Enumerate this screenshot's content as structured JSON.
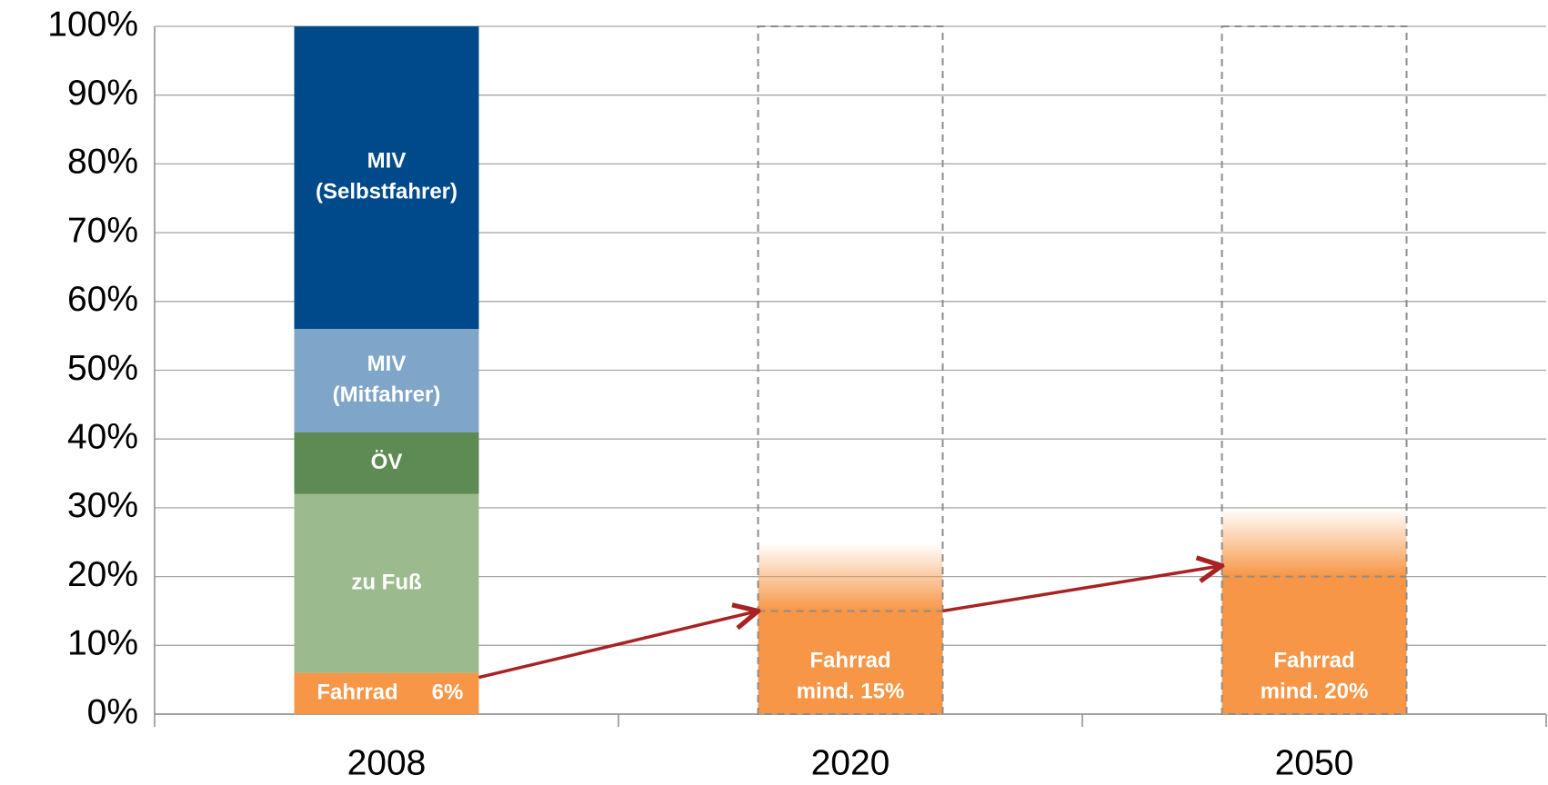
{
  "chart_data": {
    "type": "stacked_bar",
    "categories": [
      "2008",
      "2020",
      "2050"
    ],
    "series": [
      {
        "name": "Fahrrad",
        "color": "#f79646",
        "values": [
          6,
          15,
          20
        ],
        "value_labels": [
          "6%",
          "mind. 15%",
          "mind. 20%"
        ]
      },
      {
        "name": "zu Fuß",
        "color": "#9bbb8e",
        "values": [
          26,
          null,
          null
        ]
      },
      {
        "name": "ÖV",
        "color": "#5e8a53",
        "values": [
          9,
          null,
          null
        ]
      },
      {
        "name": "MIV (Mitfahrer)",
        "color": "#7fa5c8",
        "values": [
          15,
          null,
          null
        ]
      },
      {
        "name": "MIV (Selbstfahrer)",
        "color": "#004a8c",
        "values": [
          44,
          null,
          null
        ]
      }
    ],
    "ylim": [
      0,
      100
    ],
    "yticks": [
      {
        "value": 0,
        "label": "0%"
      },
      {
        "value": 10,
        "label": "10%"
      },
      {
        "value": 20,
        "label": "20%"
      },
      {
        "value": 30,
        "label": "30%"
      },
      {
        "value": 40,
        "label": "40%"
      },
      {
        "value": 50,
        "label": "50%"
      },
      {
        "value": 60,
        "label": "60%"
      },
      {
        "value": 70,
        "label": "70%"
      },
      {
        "value": 80,
        "label": "80%"
      },
      {
        "value": 90,
        "label": "90%"
      },
      {
        "value": 100,
        "label": "100%"
      }
    ],
    "grid": true
  }
}
